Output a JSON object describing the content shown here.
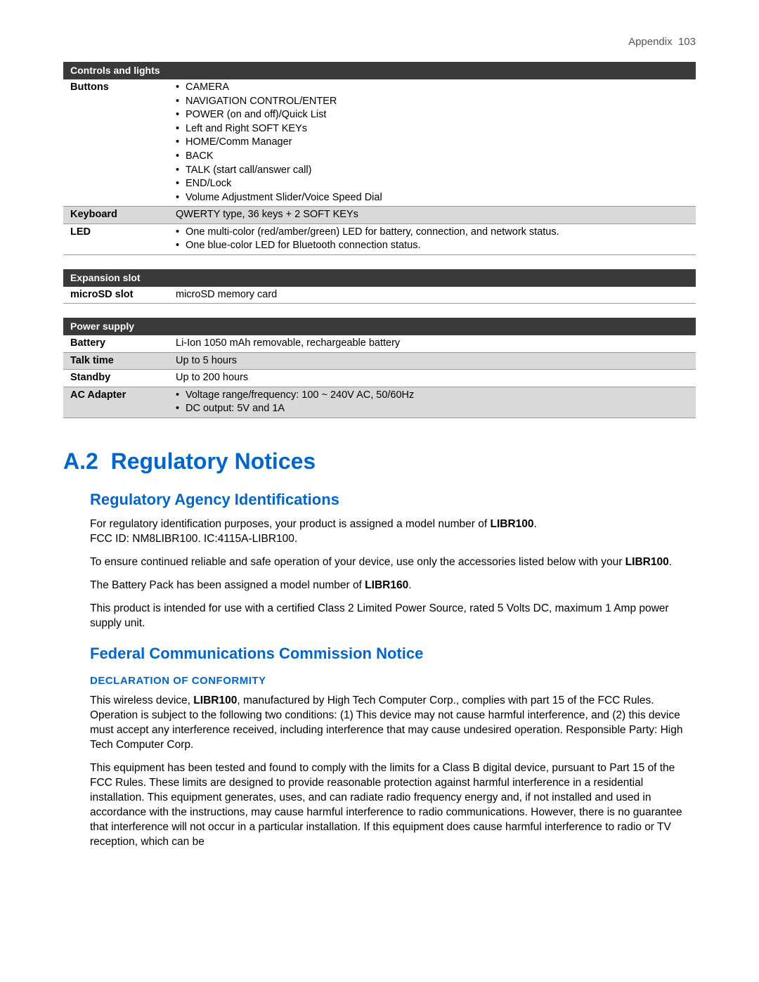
{
  "header": {
    "section": "Appendix",
    "page": "103"
  },
  "tables": {
    "controls": {
      "title": "Controls and lights",
      "rows": [
        {
          "label": "Buttons",
          "alt": false,
          "type": "list",
          "items": [
            "CAMERA",
            "NAVIGATION CONTROL/ENTER",
            "POWER (on and off)/Quick List",
            "Left and Right SOFT KEYs",
            "HOME/Comm Manager",
            "BACK",
            "TALK (start call/answer call)",
            "END/Lock",
            "Volume Adjustment Slider/Voice Speed Dial"
          ]
        },
        {
          "label": "Keyboard",
          "alt": true,
          "type": "text",
          "value": "QWERTY type, 36 keys + 2 SOFT KEYs"
        },
        {
          "label": "LED",
          "alt": false,
          "type": "list",
          "items": [
            "One multi-color (red/amber/green) LED for battery, connection, and network status.",
            "One blue-color LED for Bluetooth connection status."
          ]
        }
      ]
    },
    "expansion": {
      "title": "Expansion slot",
      "rows": [
        {
          "label": "microSD slot",
          "alt": false,
          "type": "text",
          "value": "microSD memory card"
        }
      ]
    },
    "power": {
      "title": "Power supply",
      "rows": [
        {
          "label": "Battery",
          "alt": false,
          "type": "text",
          "value": "Li-Ion 1050 mAh removable, rechargeable battery"
        },
        {
          "label": "Talk time",
          "alt": true,
          "type": "text",
          "value": "Up to 5 hours"
        },
        {
          "label": "Standby",
          "alt": false,
          "type": "text",
          "value": "Up to 200 hours"
        },
        {
          "label": "AC Adapter",
          "alt": true,
          "type": "list",
          "items": [
            "Voltage range/frequency: 100 ~ 240V AC, 50/60Hz",
            "DC output: 5V and 1A"
          ]
        }
      ]
    }
  },
  "section": {
    "number": "A.2",
    "title": "Regulatory Notices",
    "agency_title": "Regulatory Agency Identifications",
    "p1a": "For regulatory identification purposes, your product is assigned a model number of ",
    "p1b": "LIBR100",
    "p1c": ".",
    "p2": "FCC ID: NM8LIBR100.  IC:4115A-LIBR100.",
    "p3a": "To ensure continued reliable and safe operation of your device, use only the accessories listed below with your ",
    "p3b": "LIBR100",
    "p3c": ".",
    "p4a": "The Battery Pack has been assigned a model number of ",
    "p4b": "LIBR160",
    "p4c": ".",
    "p5": "This product is intended for use with a certified Class 2 Limited Power Source, rated 5 Volts DC, maximum 1 Amp power supply unit.",
    "fcc_title": "Federal Communications Commission Notice",
    "decl_title": "DECLARATION OF CONFORMITY",
    "d1a": "This wireless device, ",
    "d1b": "LIBR100",
    "d1c": ", manufactured by High Tech Computer Corp., complies with part 15 of the FCC Rules. Operation is subject to the following two conditions: (1) This device may not cause harmful interference, and (2) this device must accept any interference received, including interference that may cause undesired operation. Responsible Party: High Tech Computer Corp.",
    "d2": "This equipment has been tested and found to comply with the limits for a Class B digital device, pursuant to Part 15 of the FCC Rules. These limits are designed to provide reasonable protection against harmful interference in a residential installation. This equipment generates, uses, and can radiate radio frequency energy and, if not installed and used in accordance with the instructions, may cause harmful interference to radio communications. However, there is no guarantee that interference will not occur in a particular installation. If this equipment does cause harmful interference to radio or TV reception, which can be"
  }
}
